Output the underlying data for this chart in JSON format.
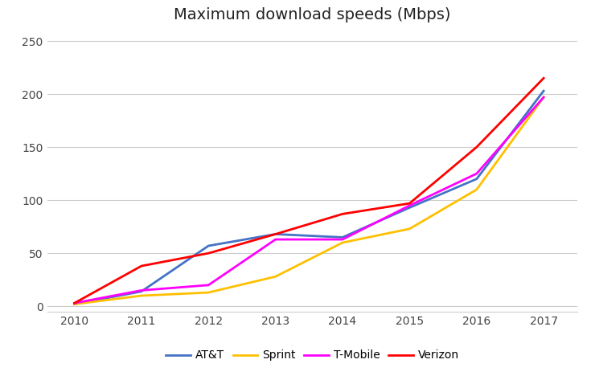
{
  "title": "Maximum download speeds (Mbps)",
  "years": [
    2010,
    2011,
    2012,
    2013,
    2014,
    2015,
    2016,
    2017
  ],
  "series": {
    "AT&T": {
      "values": [
        2,
        14,
        57,
        68,
        65,
        93,
        120,
        203
      ],
      "color": "#4472C4",
      "linewidth": 2.0
    },
    "Sprint": {
      "values": [
        2,
        10,
        13,
        28,
        60,
        73,
        110,
        197
      ],
      "color": "#FFC000",
      "linewidth": 2.0
    },
    "T-Mobile": {
      "values": [
        3,
        15,
        20,
        63,
        63,
        95,
        125,
        197
      ],
      "color": "#FF00FF",
      "linewidth": 2.0
    },
    "Verizon": {
      "values": [
        3,
        38,
        50,
        68,
        87,
        97,
        150,
        215
      ],
      "color": "#FF0000",
      "linewidth": 2.0
    }
  },
  "ylim": [
    -5,
    260
  ],
  "yticks": [
    0,
    50,
    100,
    150,
    200,
    250
  ],
  "xlim": [
    2009.6,
    2017.5
  ],
  "background_color": "#ffffff",
  "grid_color": "#cccccc",
  "title_fontsize": 14,
  "tick_fontsize": 10,
  "legend_order": [
    "AT&T",
    "Sprint",
    "T-Mobile",
    "Verizon"
  ]
}
